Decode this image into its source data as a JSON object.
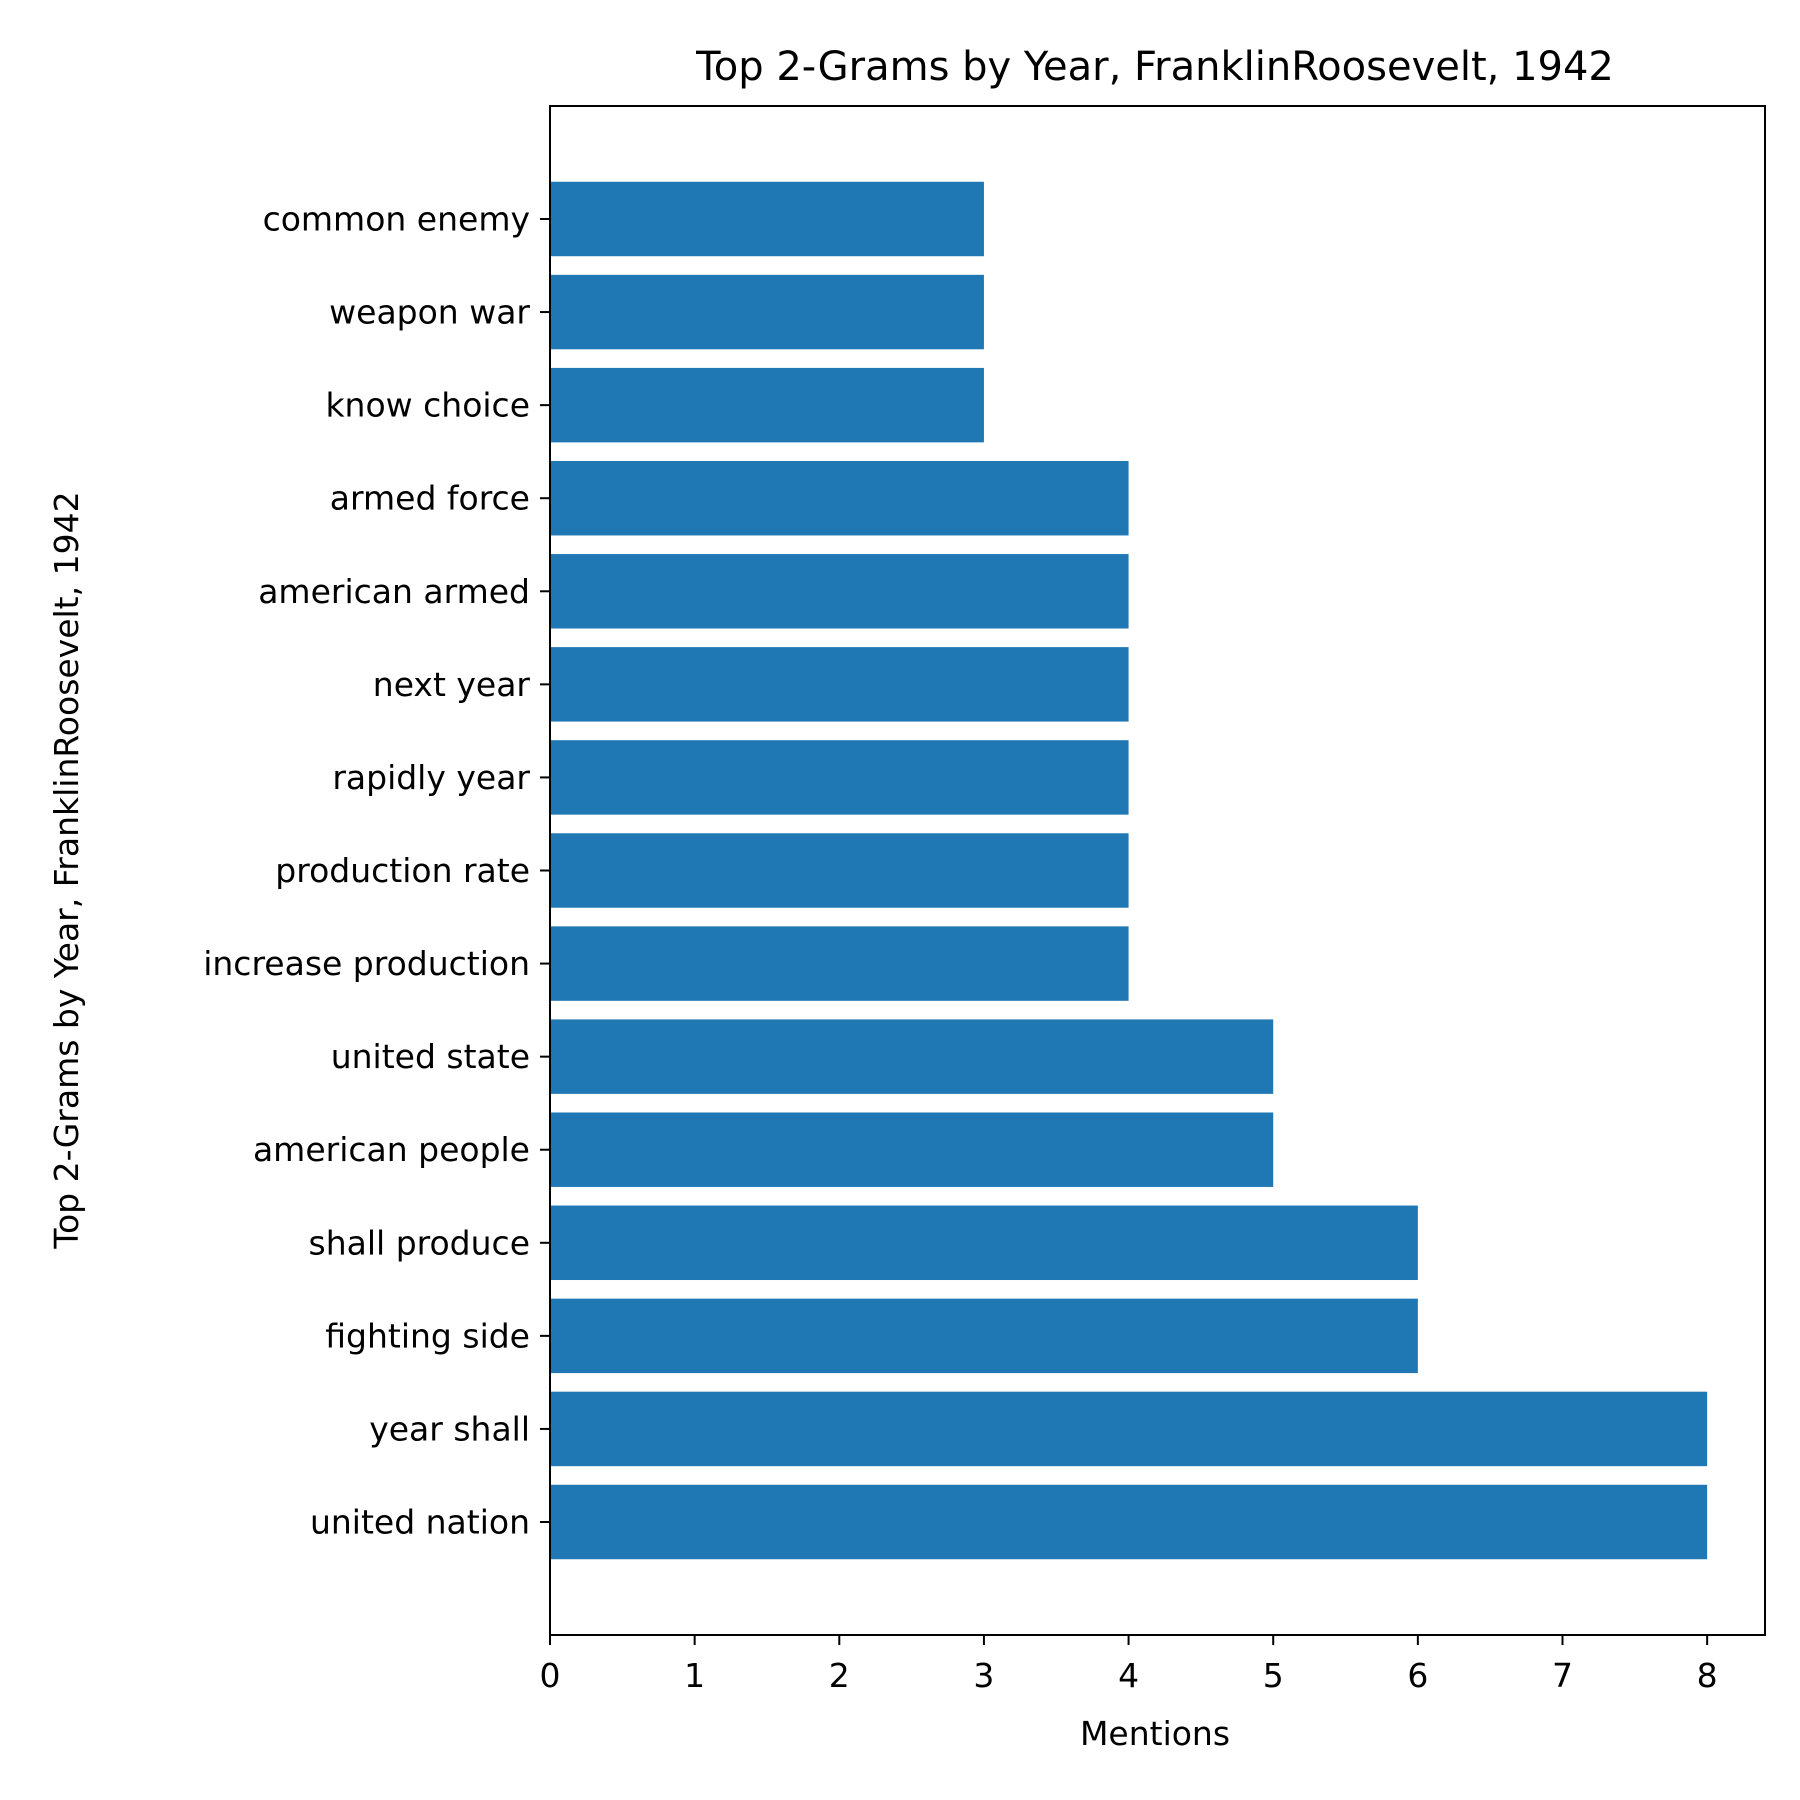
{
  "chart_data": {
    "type": "bar",
    "orientation": "horizontal",
    "title": "Top 2-Grams by Year, FranklinRoosevelt, 1942",
    "xlabel": "Mentions",
    "ylabel": "Top 2-Grams by Year, FranklinRoosevelt, 1942",
    "categories": [
      "united nation",
      "year shall",
      "fighting side",
      "shall produce",
      "american people",
      "united state",
      "increase production",
      "production rate",
      "rapidly year",
      "next year",
      "american armed",
      "armed force",
      "know choice",
      "weapon war",
      "common enemy"
    ],
    "values": [
      8,
      8,
      6,
      6,
      5,
      5,
      4,
      4,
      4,
      4,
      4,
      4,
      3,
      3,
      3
    ],
    "xlim": [
      0,
      8.4
    ],
    "xticks": [
      0,
      1,
      2,
      3,
      4,
      5,
      6,
      7,
      8
    ],
    "bar_color": "#1f77b4",
    "grid": false,
    "legend": "none"
  }
}
